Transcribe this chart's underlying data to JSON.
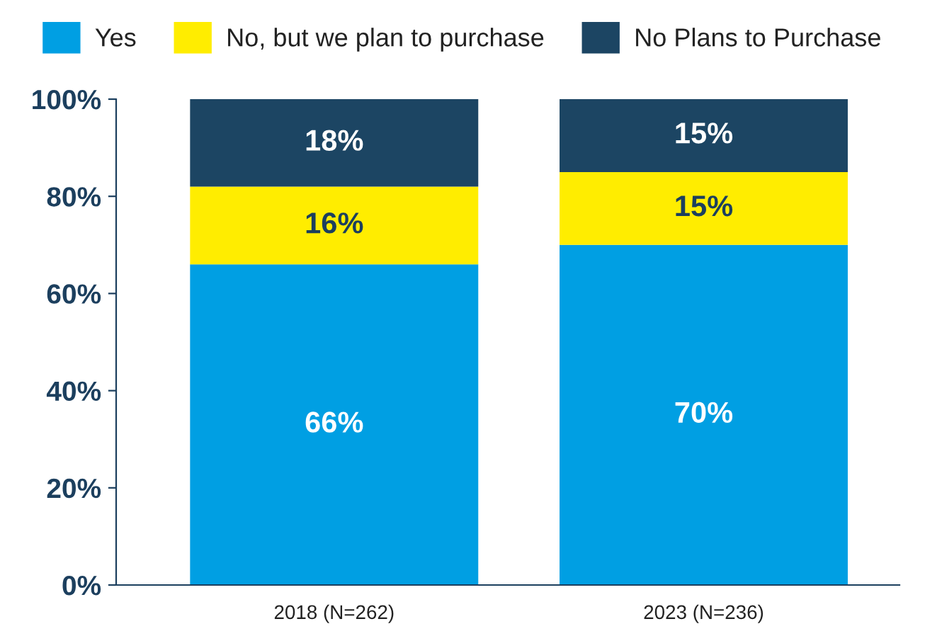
{
  "chart_data": {
    "type": "bar",
    "stacked": true,
    "categories": [
      "2018 (N=262)",
      "2023 (N=236)"
    ],
    "series": [
      {
        "name": "Yes",
        "color": "#009fe3",
        "values": [
          66,
          70
        ],
        "value_labels": [
          "66%",
          "70%"
        ]
      },
      {
        "name": "No, but we plan to purchase",
        "color": "#ffed00",
        "values": [
          16,
          15
        ],
        "value_labels": [
          "16%",
          "15%"
        ]
      },
      {
        "name": "No Plans to Purchase",
        "color": "#1c4563",
        "values": [
          18,
          15
        ],
        "value_labels": [
          "18%",
          "15%"
        ]
      }
    ],
    "ylim": [
      0,
      100
    ],
    "yticks": [
      {
        "value": 0,
        "label": "0%"
      },
      {
        "value": 20,
        "label": "20%"
      },
      {
        "value": 40,
        "label": "40%"
      },
      {
        "value": 60,
        "label": "60%"
      },
      {
        "value": 80,
        "label": "80%"
      },
      {
        "value": 100,
        "label": "100%"
      }
    ],
    "grid": false,
    "legend": "top"
  }
}
